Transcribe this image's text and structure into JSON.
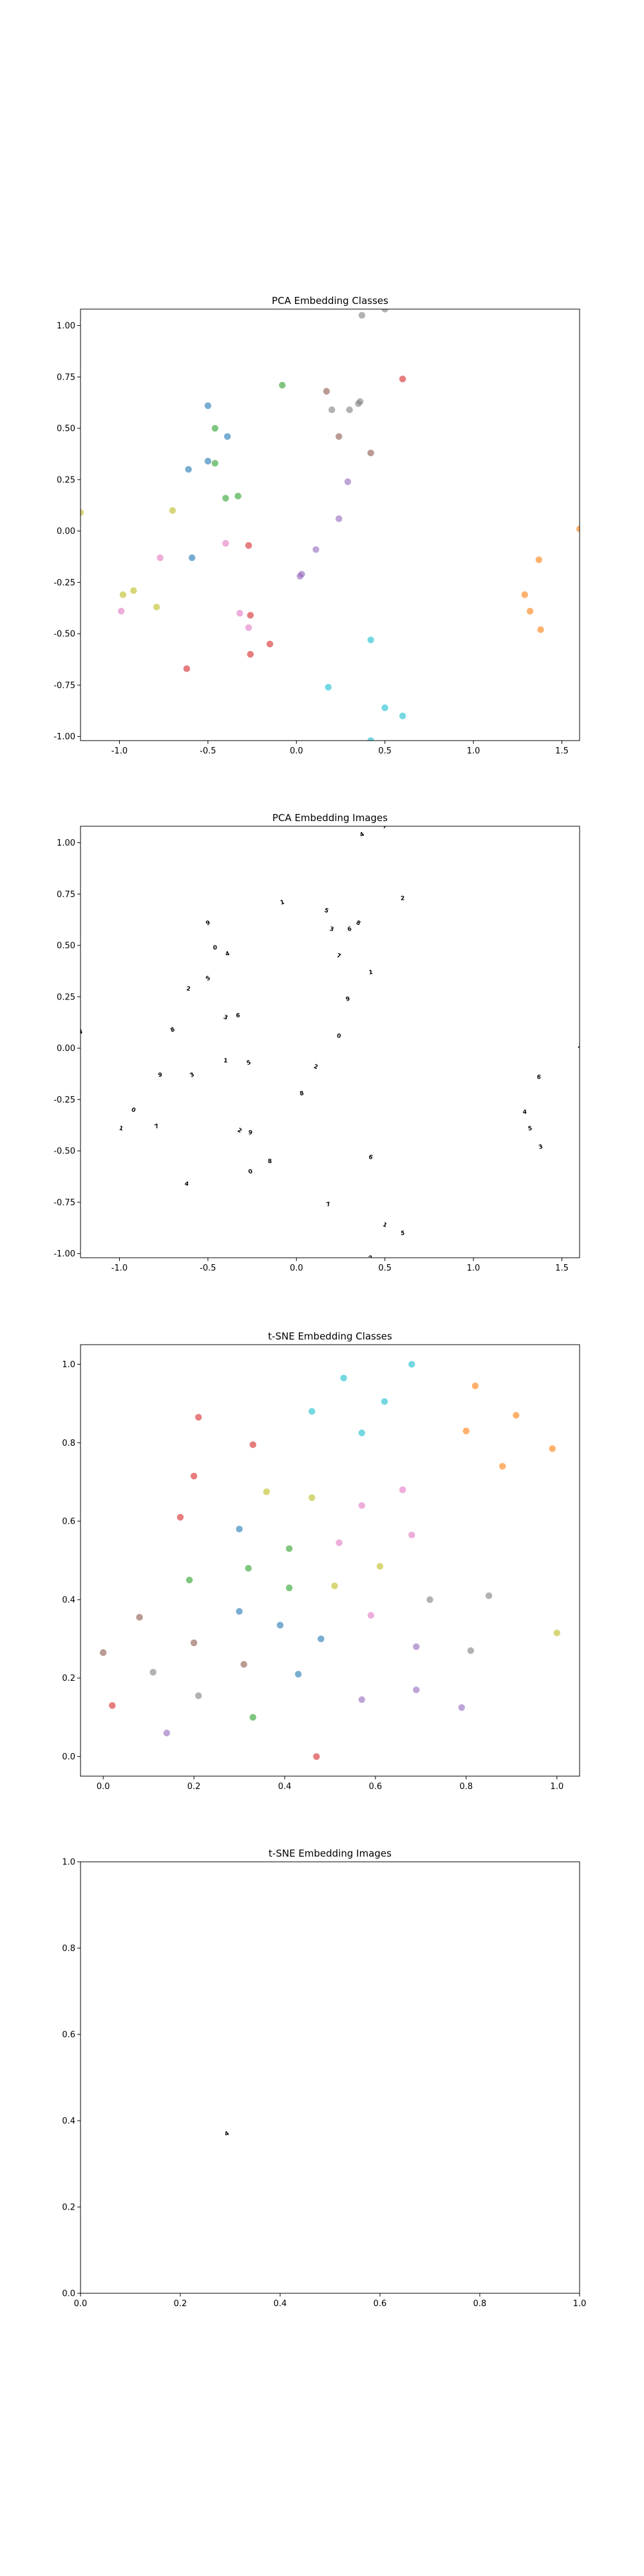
{
  "chart_data": [
    {
      "type": "scatter",
      "title": "PCA Embedding Classes",
      "xlabel": "",
      "ylabel": "",
      "xlim": [
        -1.22,
        1.6
      ],
      "ylim": [
        -1.02,
        1.08
      ],
      "xticks": [
        "-1.0",
        "-0.5",
        "0.0",
        "0.5",
        "1.0",
        "1.5"
      ],
      "yticks": [
        "-1.00",
        "-0.75",
        "-0.50",
        "-0.25",
        "0.00",
        "0.25",
        "0.50",
        "0.75",
        "1.00"
      ],
      "points": [
        {
          "x": 0.37,
          "y": 1.05,
          "color": "#7f7f7f"
        },
        {
          "x": 0.5,
          "y": 1.08,
          "color": "#7f7f7f"
        },
        {
          "x": -0.08,
          "y": 0.71,
          "color": "#2ca02c"
        },
        {
          "x": 0.17,
          "y": 0.68,
          "color": "#8c564b"
        },
        {
          "x": 0.6,
          "y": 0.74,
          "color": "#d62728"
        },
        {
          "x": -0.5,
          "y": 0.61,
          "color": "#1f77b4"
        },
        {
          "x": 0.2,
          "y": 0.59,
          "color": "#7f7f7f"
        },
        {
          "x": 0.3,
          "y": 0.59,
          "color": "#7f7f7f"
        },
        {
          "x": 0.35,
          "y": 0.62,
          "color": "#7f7f7f"
        },
        {
          "x": 0.36,
          "y": 0.63,
          "color": "#7f7f7f"
        },
        {
          "x": -0.46,
          "y": 0.5,
          "color": "#2ca02c"
        },
        {
          "x": -0.39,
          "y": 0.46,
          "color": "#1f77b4"
        },
        {
          "x": 0.24,
          "y": 0.46,
          "color": "#8c564b"
        },
        {
          "x": 0.42,
          "y": 0.38,
          "color": "#8c564b"
        },
        {
          "x": -0.5,
          "y": 0.34,
          "color": "#1f77b4"
        },
        {
          "x": -0.46,
          "y": 0.33,
          "color": "#2ca02c"
        },
        {
          "x": -0.61,
          "y": 0.3,
          "color": "#1f77b4"
        },
        {
          "x": 0.29,
          "y": 0.24,
          "color": "#9467bd"
        },
        {
          "x": -0.4,
          "y": 0.16,
          "color": "#2ca02c"
        },
        {
          "x": -0.33,
          "y": 0.17,
          "color": "#2ca02c"
        },
        {
          "x": -0.7,
          "y": 0.1,
          "color": "#bcbd22"
        },
        {
          "x": 0.24,
          "y": 0.06,
          "color": "#9467bd"
        },
        {
          "x": -1.22,
          "y": 0.09,
          "color": "#bcbd22"
        },
        {
          "x": 1.6,
          "y": 0.01,
          "color": "#ff7f0e"
        },
        {
          "x": -0.4,
          "y": -0.06,
          "color": "#e377c2"
        },
        {
          "x": -0.27,
          "y": -0.07,
          "color": "#d62728"
        },
        {
          "x": 0.11,
          "y": -0.09,
          "color": "#9467bd"
        },
        {
          "x": -0.77,
          "y": -0.13,
          "color": "#e377c2"
        },
        {
          "x": -0.59,
          "y": -0.13,
          "color": "#1f77b4"
        },
        {
          "x": 1.37,
          "y": -0.14,
          "color": "#ff7f0e"
        },
        {
          "x": 0.03,
          "y": -0.21,
          "color": "#9467bd"
        },
        {
          "x": 0.02,
          "y": -0.22,
          "color": "#9467bd"
        },
        {
          "x": -0.98,
          "y": -0.31,
          "color": "#bcbd22"
        },
        {
          "x": -0.92,
          "y": -0.29,
          "color": "#bcbd22"
        },
        {
          "x": 1.29,
          "y": -0.31,
          "color": "#ff7f0e"
        },
        {
          "x": -0.79,
          "y": -0.37,
          "color": "#bcbd22"
        },
        {
          "x": -0.99,
          "y": -0.39,
          "color": "#e377c2"
        },
        {
          "x": 1.32,
          "y": -0.39,
          "color": "#ff7f0e"
        },
        {
          "x": -0.32,
          "y": -0.4,
          "color": "#e377c2"
        },
        {
          "x": -0.26,
          "y": -0.41,
          "color": "#d62728"
        },
        {
          "x": -0.27,
          "y": -0.47,
          "color": "#e377c2"
        },
        {
          "x": 1.38,
          "y": -0.48,
          "color": "#ff7f0e"
        },
        {
          "x": 0.42,
          "y": -0.53,
          "color": "#17becf"
        },
        {
          "x": -0.15,
          "y": -0.55,
          "color": "#d62728"
        },
        {
          "x": -0.26,
          "y": -0.6,
          "color": "#d62728"
        },
        {
          "x": -0.62,
          "y": -0.67,
          "color": "#d62728"
        },
        {
          "x": 0.18,
          "y": -0.76,
          "color": "#17becf"
        },
        {
          "x": 0.5,
          "y": -0.86,
          "color": "#17becf"
        },
        {
          "x": 0.6,
          "y": -0.9,
          "color": "#17becf"
        },
        {
          "x": 0.42,
          "y": -1.02,
          "color": "#17becf"
        }
      ]
    },
    {
      "type": "scatter",
      "title": "PCA Embedding Images",
      "xlabel": "",
      "ylabel": "",
      "xlim": [
        -1.22,
        1.6
      ],
      "ylim": [
        -1.02,
        1.08
      ],
      "xticks": [
        "-1.0",
        "-0.5",
        "0.0",
        "0.5",
        "1.0",
        "1.5"
      ],
      "yticks": [
        "-1.00",
        "-0.75",
        "-0.50",
        "-0.25",
        "0.00",
        "0.25",
        "0.50",
        "0.75",
        "1.00"
      ],
      "points": [
        {
          "x": 0.37,
          "y": 1.04
        },
        {
          "x": 0.5,
          "y": 1.08
        },
        {
          "x": -0.08,
          "y": 0.71
        },
        {
          "x": 0.17,
          "y": 0.67
        },
        {
          "x": 0.6,
          "y": 0.73
        },
        {
          "x": -0.5,
          "y": 0.61
        },
        {
          "x": 0.2,
          "y": 0.58
        },
        {
          "x": 0.3,
          "y": 0.58
        },
        {
          "x": 0.35,
          "y": 0.61
        },
        {
          "x": -0.46,
          "y": 0.49
        },
        {
          "x": -0.39,
          "y": 0.46
        },
        {
          "x": 0.24,
          "y": 0.45
        },
        {
          "x": 0.42,
          "y": 0.37
        },
        {
          "x": -0.5,
          "y": 0.34
        },
        {
          "x": -0.61,
          "y": 0.29
        },
        {
          "x": 0.29,
          "y": 0.24
        },
        {
          "x": -0.4,
          "y": 0.15
        },
        {
          "x": -0.33,
          "y": 0.16
        },
        {
          "x": -0.7,
          "y": 0.09
        },
        {
          "x": 0.24,
          "y": 0.06
        },
        {
          "x": -1.22,
          "y": 0.08
        },
        {
          "x": 1.6,
          "y": 0.01
        },
        {
          "x": -0.4,
          "y": -0.06
        },
        {
          "x": -0.27,
          "y": -0.07
        },
        {
          "x": 0.11,
          "y": -0.09
        },
        {
          "x": -0.77,
          "y": -0.13
        },
        {
          "x": -0.59,
          "y": -0.13
        },
        {
          "x": 1.37,
          "y": -0.14
        },
        {
          "x": 0.03,
          "y": -0.22
        },
        {
          "x": -0.92,
          "y": -0.3
        },
        {
          "x": 1.29,
          "y": -0.31
        },
        {
          "x": -0.79,
          "y": -0.38
        },
        {
          "x": -0.99,
          "y": -0.39
        },
        {
          "x": 1.32,
          "y": -0.39
        },
        {
          "x": -0.32,
          "y": -0.4
        },
        {
          "x": -0.26,
          "y": -0.41
        },
        {
          "x": 1.38,
          "y": -0.48
        },
        {
          "x": 0.42,
          "y": -0.53
        },
        {
          "x": -0.15,
          "y": -0.55
        },
        {
          "x": -0.26,
          "y": -0.6
        },
        {
          "x": -0.62,
          "y": -0.66
        },
        {
          "x": 0.18,
          "y": -0.76
        },
        {
          "x": 0.5,
          "y": -0.86
        },
        {
          "x": 0.6,
          "y": -0.9
        },
        {
          "x": 0.42,
          "y": -1.02
        }
      ]
    },
    {
      "type": "scatter",
      "title": "t-SNE Embedding Classes",
      "xlabel": "",
      "ylabel": "",
      "xlim": [
        -0.05,
        1.05
      ],
      "ylim": [
        -0.05,
        1.05
      ],
      "xticks": [
        "0.0",
        "0.2",
        "0.4",
        "0.6",
        "0.8",
        "1.0"
      ],
      "yticks": [
        "0.0",
        "0.2",
        "0.4",
        "0.6",
        "0.8",
        "1.0"
      ],
      "points": [
        {
          "x": 0.68,
          "y": 1.0,
          "color": "#17becf"
        },
        {
          "x": 0.53,
          "y": 0.965,
          "color": "#17becf"
        },
        {
          "x": 0.82,
          "y": 0.945,
          "color": "#ff7f0e"
        },
        {
          "x": 0.62,
          "y": 0.905,
          "color": "#17becf"
        },
        {
          "x": 0.46,
          "y": 0.88,
          "color": "#17becf"
        },
        {
          "x": 0.91,
          "y": 0.87,
          "color": "#ff7f0e"
        },
        {
          "x": 0.21,
          "y": 0.865,
          "color": "#d62728"
        },
        {
          "x": 0.57,
          "y": 0.825,
          "color": "#17becf"
        },
        {
          "x": 0.8,
          "y": 0.83,
          "color": "#ff7f0e"
        },
        {
          "x": 0.33,
          "y": 0.795,
          "color": "#d62728"
        },
        {
          "x": 0.99,
          "y": 0.785,
          "color": "#ff7f0e"
        },
        {
          "x": 0.88,
          "y": 0.74,
          "color": "#ff7f0e"
        },
        {
          "x": 0.2,
          "y": 0.715,
          "color": "#d62728"
        },
        {
          "x": 0.36,
          "y": 0.675,
          "color": "#bcbd22"
        },
        {
          "x": 0.66,
          "y": 0.68,
          "color": "#e377c2"
        },
        {
          "x": 0.46,
          "y": 0.66,
          "color": "#bcbd22"
        },
        {
          "x": 0.57,
          "y": 0.64,
          "color": "#e377c2"
        },
        {
          "x": 0.17,
          "y": 0.61,
          "color": "#d62728"
        },
        {
          "x": 0.3,
          "y": 0.58,
          "color": "#1f77b4"
        },
        {
          "x": 0.68,
          "y": 0.565,
          "color": "#e377c2"
        },
        {
          "x": 0.52,
          "y": 0.545,
          "color": "#e377c2"
        },
        {
          "x": 0.41,
          "y": 0.53,
          "color": "#2ca02c"
        },
        {
          "x": 0.61,
          "y": 0.485,
          "color": "#bcbd22"
        },
        {
          "x": 0.32,
          "y": 0.48,
          "color": "#2ca02c"
        },
        {
          "x": 0.19,
          "y": 0.45,
          "color": "#2ca02c"
        },
        {
          "x": 0.51,
          "y": 0.435,
          "color": "#bcbd22"
        },
        {
          "x": 0.41,
          "y": 0.43,
          "color": "#2ca02c"
        },
        {
          "x": 0.85,
          "y": 0.41,
          "color": "#7f7f7f"
        },
        {
          "x": 0.72,
          "y": 0.4,
          "color": "#7f7f7f"
        },
        {
          "x": 0.3,
          "y": 0.37,
          "color": "#1f77b4"
        },
        {
          "x": 0.59,
          "y": 0.36,
          "color": "#e377c2"
        },
        {
          "x": 0.08,
          "y": 0.355,
          "color": "#8c564b"
        },
        {
          "x": 0.39,
          "y": 0.335,
          "color": "#1f77b4"
        },
        {
          "x": 1.0,
          "y": 0.315,
          "color": "#bcbd22"
        },
        {
          "x": 0.48,
          "y": 0.3,
          "color": "#1f77b4"
        },
        {
          "x": 0.2,
          "y": 0.29,
          "color": "#8c564b"
        },
        {
          "x": 0.69,
          "y": 0.28,
          "color": "#9467bd"
        },
        {
          "x": 0.81,
          "y": 0.27,
          "color": "#7f7f7f"
        },
        {
          "x": 0.0,
          "y": 0.265,
          "color": "#8c564b"
        },
        {
          "x": 0.31,
          "y": 0.235,
          "color": "#8c564b"
        },
        {
          "x": 0.11,
          "y": 0.215,
          "color": "#7f7f7f"
        },
        {
          "x": 0.43,
          "y": 0.21,
          "color": "#1f77b4"
        },
        {
          "x": 0.69,
          "y": 0.17,
          "color": "#9467bd"
        },
        {
          "x": 0.21,
          "y": 0.155,
          "color": "#7f7f7f"
        },
        {
          "x": 0.57,
          "y": 0.145,
          "color": "#9467bd"
        },
        {
          "x": 0.02,
          "y": 0.13,
          "color": "#d62728"
        },
        {
          "x": 0.79,
          "y": 0.125,
          "color": "#9467bd"
        },
        {
          "x": 0.33,
          "y": 0.1,
          "color": "#2ca02c"
        },
        {
          "x": 0.14,
          "y": 0.06,
          "color": "#9467bd"
        },
        {
          "x": 0.47,
          "y": 0.0,
          "color": "#d62728"
        }
      ]
    },
    {
      "type": "scatter",
      "title": "t-SNE Embedding Images",
      "xlabel": "",
      "ylabel": "",
      "xlim": [
        0.0,
        1.0
      ],
      "ylim": [
        0.0,
        1.0
      ],
      "xticks": [
        "0.0",
        "0.2",
        "0.4",
        "0.6",
        "0.8",
        "1.0"
      ],
      "yticks": [
        "0.0",
        "0.2",
        "0.4",
        "0.6",
        "0.8",
        "1.0"
      ],
      "points": [
        {
          "x": 0.293,
          "y": 0.37
        }
      ]
    }
  ]
}
